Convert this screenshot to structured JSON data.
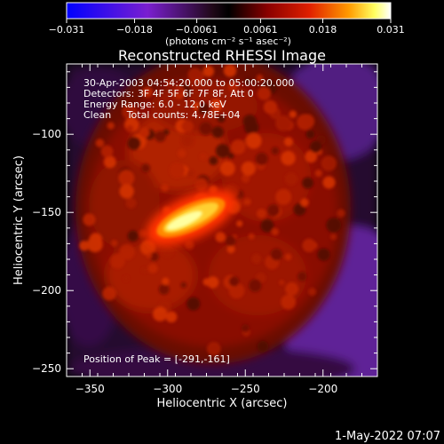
{
  "chart_data": {
    "type": "heatmap",
    "title": "Reconstructed RHESSI Image",
    "xlabel": "Heliocentric X (arcsec)",
    "ylabel": "Heliocentric Y (arcsec)",
    "xlim": [
      -365,
      -165
    ],
    "ylim": [
      -255,
      -55
    ],
    "xticks": [
      -350,
      -300,
      -250,
      -200
    ],
    "yticks": [
      -250,
      -200,
      -150,
      -100
    ],
    "colorbar": {
      "min": -0.031,
      "max": 0.031,
      "tick_values": [
        -0.031,
        -0.018,
        -0.0061,
        0.0061,
        0.018,
        0.031
      ],
      "tick_labels": [
        "−0.031",
        "−0.018",
        "−0.0061",
        "0.0061",
        "0.018",
        "0.031"
      ],
      "units": "(photons cm⁻² s⁻¹ asec⁻²)",
      "colormap": "blue-purple-black-red-yellow-white"
    },
    "info": [
      "30-Apr-2003 04:54:20.000 to 05:00:20.000",
      "Detectors: 3F 4F 5F 6F 7F 8F, Att 0",
      "Energy Range: 6.0 - 12.0 keV",
      "Clean     Total counts: 4.78E+04"
    ],
    "peak": {
      "label": "Position of Peak = [-291,-161]",
      "x": -291,
      "y": -161
    },
    "source": {
      "center": [
        -285,
        -156
      ],
      "major_axis_angle_deg": 25,
      "peak_value": 0.031
    }
  },
  "footer": {
    "timestamp": "1-May-2022 07:07"
  },
  "colors": {
    "background": "#000000",
    "foreground": "#ffffff"
  }
}
